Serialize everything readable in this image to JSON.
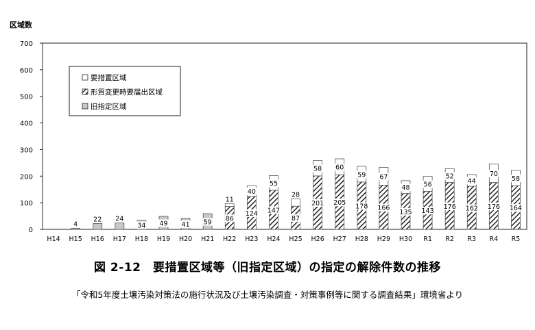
{
  "chart_data": {
    "type": "bar",
    "stacked": true,
    "ylabel": "区域数",
    "ylim": [
      0,
      700
    ],
    "yticks": [
      0,
      100,
      200,
      300,
      400,
      500,
      600,
      700
    ],
    "grid": false,
    "legend_position": "top-left",
    "categories": [
      "H14",
      "H15",
      "H16",
      "H17",
      "H18",
      "H19",
      "H20",
      "H21",
      "H22",
      "H23",
      "H24",
      "H25",
      "H26",
      "H27",
      "H28",
      "H29",
      "H30",
      "R1",
      "R2",
      "R3",
      "R4",
      "R5"
    ],
    "series": [
      {
        "name": "旧指定区域",
        "pattern": "gray-fill",
        "values": [
          0,
          4,
          22,
          24,
          34,
          49,
          41,
          59,
          0,
          0,
          0,
          0,
          0,
          0,
          0,
          0,
          0,
          0,
          0,
          0,
          0,
          0
        ],
        "labels": [
          "",
          "4",
          "22",
          "24",
          "34",
          "49",
          "41",
          "59",
          "",
          "",
          "",
          "",
          "",
          "",
          "",
          "",
          "",
          "",
          "",
          "",
          "",
          ""
        ]
      },
      {
        "name": "形質変更時要届出区域",
        "pattern": "hatch",
        "values": [
          0,
          0,
          0,
          0,
          0,
          0,
          0,
          0,
          86,
          124,
          147,
          87,
          201,
          205,
          178,
          166,
          135,
          143,
          176,
          162,
          176,
          164
        ],
        "labels": [
          "",
          "",
          "",
          "",
          "",
          "",
          "",
          "",
          "86",
          "124",
          "147",
          "87",
          "201",
          "205",
          "178",
          "166",
          "135",
          "143",
          "176",
          "162",
          "176",
          "164"
        ]
      },
      {
        "name": "要措置区域",
        "pattern": "white",
        "values": [
          0,
          0,
          0,
          0,
          0,
          0,
          0,
          0,
          11,
          40,
          55,
          28,
          58,
          60,
          59,
          67,
          48,
          56,
          52,
          44,
          70,
          58
        ],
        "labels": [
          "",
          "",
          "",
          "",
          "",
          "",
          "",
          "",
          "11",
          "40",
          "55",
          "28",
          "58",
          "60",
          "59",
          "67",
          "48",
          "56",
          "52",
          "44",
          "70",
          "58"
        ]
      }
    ],
    "legend_order": [
      "要措置区域",
      "形質変更時要届出区域",
      "旧指定区域"
    ],
    "title": "図 2-12　要措置区域等（旧指定区域）の指定の解除件数の推移",
    "source": "「令和5年度土壌汚染対策法の施行状況及び土壌汚染調査・対策事例等に関する調査結果」環境省より"
  }
}
